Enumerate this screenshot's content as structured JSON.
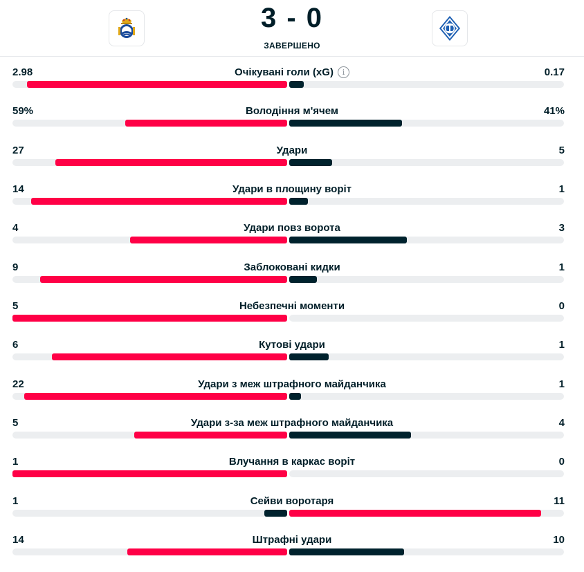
{
  "match": {
    "score": "3 - 0",
    "status": "ЗАВЕРШЕНО",
    "home_logo": "real-sociedad-crest",
    "away_logo": "dynamo-kyiv-crest"
  },
  "colors": {
    "highlight": "#ff0046",
    "dark": "#00222d",
    "track": "#eceef0"
  },
  "stats": [
    {
      "label": "Очікувані голи (xG)",
      "home": "2.98",
      "away": "0.17",
      "home_share": 0.946,
      "away_share": 0.054,
      "info": true
    },
    {
      "label": "Володіння м'ячем",
      "home": "59%",
      "away": "41%",
      "home_share": 0.59,
      "away_share": 0.41
    },
    {
      "label": "Удари",
      "home": "27",
      "away": "5",
      "home_share": 0.844,
      "away_share": 0.156
    },
    {
      "label": "Удари в площину воріт",
      "home": "14",
      "away": "1",
      "home_share": 0.933,
      "away_share": 0.067
    },
    {
      "label": "Удари повз ворота",
      "home": "4",
      "away": "3",
      "home_share": 0.571,
      "away_share": 0.429
    },
    {
      "label": "Заблоковані кидки",
      "home": "9",
      "away": "1",
      "home_share": 0.9,
      "away_share": 0.1
    },
    {
      "label": "Небезпечні моменти",
      "home": "5",
      "away": "0",
      "home_share": 1.0,
      "away_share": 0.0
    },
    {
      "label": "Кутові удари",
      "home": "6",
      "away": "1",
      "home_share": 0.857,
      "away_share": 0.143
    },
    {
      "label": "Удари з меж штрафного майданчика",
      "home": "22",
      "away": "1",
      "home_share": 0.957,
      "away_share": 0.043
    },
    {
      "label": "Удари з-за меж штрафного майданчика",
      "home": "5",
      "away": "4",
      "home_share": 0.556,
      "away_share": 0.444
    },
    {
      "label": "Влучання в каркас воріт",
      "home": "1",
      "away": "0",
      "home_share": 1.0,
      "away_share": 0.0
    },
    {
      "label": "Сейви воротаря",
      "home": "1",
      "away": "11",
      "home_share": 0.083,
      "away_share": 0.917
    },
    {
      "label": "Штрафні удари",
      "home": "14",
      "away": "10",
      "home_share": 0.583,
      "away_share": 0.417
    }
  ]
}
